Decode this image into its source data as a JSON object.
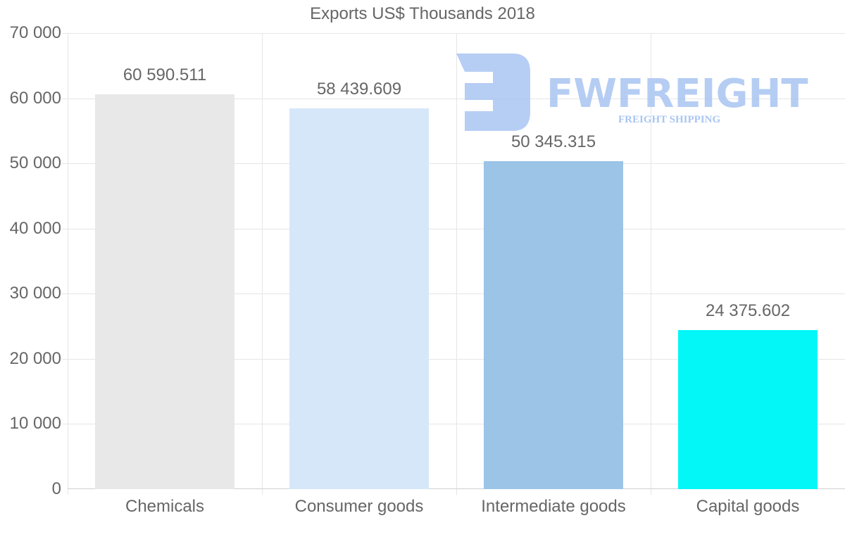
{
  "chart_data": {
    "type": "bar",
    "title": "Exports US$ Thousands 2018",
    "categories": [
      "Chemicals",
      "Consumer goods",
      "Intermediate goods",
      "Capital goods"
    ],
    "values": [
      60590.511,
      58439.609,
      50345.315,
      24375.602
    ],
    "value_labels": [
      "60 590.511",
      "58 439.609",
      "50 345.315",
      "24 375.602"
    ],
    "colors": [
      "#e8e8e8",
      "#d6e7f9",
      "#9bc4e7",
      "#03f7f7"
    ],
    "xlabel": "",
    "ylabel": "",
    "ylim": [
      0,
      70000
    ],
    "yticks": [
      "0",
      "10 000",
      "20 000",
      "30 000",
      "40 000",
      "50 000",
      "60 000",
      "70 000"
    ],
    "grid": true,
    "legend": "none"
  },
  "watermark": {
    "brand": "FWFREIGHT",
    "tagline": "FREIGHT SHIPPING",
    "color": "#a9c5f2"
  }
}
